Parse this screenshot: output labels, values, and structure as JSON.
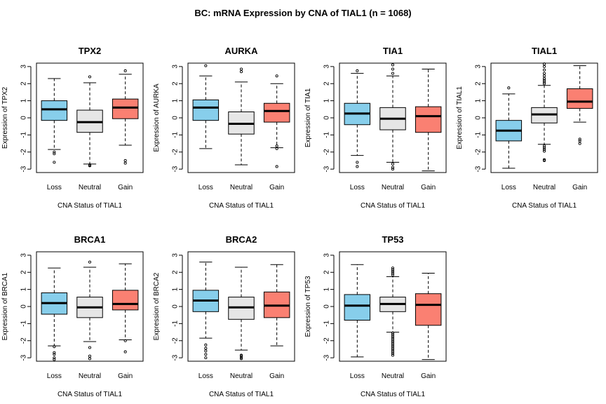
{
  "figure": {
    "title": "BC: mRNA Expression by CNA of TIAL1 (n = 1068)"
  },
  "colors": {
    "Loss": "#87CEEB",
    "Neutral": "#E6E6E6",
    "Gain": "#FA8072"
  },
  "chart_data": [
    {
      "type": "box",
      "title": "TPX2",
      "ylabel": "Expression of TPX2",
      "xlabel": "CNA Status of TIAL1",
      "categories": [
        "Loss",
        "Neutral",
        "Gain"
      ],
      "ylim": [
        -3.2,
        3.2
      ],
      "yticks": [
        -3,
        -2,
        -1,
        0,
        1,
        2,
        3
      ],
      "boxes": [
        {
          "whisker_low": -1.85,
          "q1": -0.15,
          "median": 0.5,
          "q3": 1.0,
          "whisker_high": 2.3,
          "outliers": [
            -2.0,
            -2.1,
            -2.6
          ]
        },
        {
          "whisker_low": -2.7,
          "q1": -0.85,
          "median": -0.25,
          "q3": 0.45,
          "whisker_high": 2.05,
          "outliers": [
            2.4,
            -2.75,
            -2.8,
            -2.8
          ]
        },
        {
          "whisker_low": -1.6,
          "q1": -0.05,
          "median": 0.6,
          "q3": 1.1,
          "whisker_high": 2.55,
          "outliers": [
            2.75,
            -2.5,
            -2.65
          ]
        }
      ]
    },
    {
      "type": "box",
      "title": "AURKA",
      "ylabel": "Expression of AURKA",
      "xlabel": "CNA Status of TIAL1",
      "categories": [
        "Loss",
        "Neutral",
        "Gain"
      ],
      "ylim": [
        -3.2,
        3.2
      ],
      "yticks": [
        -3,
        -2,
        -1,
        0,
        1,
        2,
        3
      ],
      "boxes": [
        {
          "whisker_low": -1.8,
          "q1": -0.15,
          "median": 0.6,
          "q3": 1.05,
          "whisker_high": 2.45,
          "outliers": [
            3.05
          ]
        },
        {
          "whisker_low": -2.75,
          "q1": -0.95,
          "median": -0.35,
          "q3": 0.35,
          "whisker_high": 2.1,
          "outliers": [
            2.7,
            2.85
          ]
        },
        {
          "whisker_low": -1.75,
          "q1": -0.25,
          "median": 0.4,
          "q3": 0.85,
          "whisker_high": 2.0,
          "outliers": [
            2.45,
            -1.65,
            -1.8,
            -2.85
          ]
        }
      ]
    },
    {
      "type": "box",
      "title": "TIA1",
      "ylabel": "Expression of TIA1",
      "xlabel": "CNA Status of TIAL1",
      "categories": [
        "Loss",
        "Neutral",
        "Gain"
      ],
      "ylim": [
        -3.2,
        3.2
      ],
      "yticks": [
        -3,
        -2,
        -1,
        0,
        1,
        2,
        3
      ],
      "boxes": [
        {
          "whisker_low": -2.2,
          "q1": -0.4,
          "median": 0.25,
          "q3": 0.85,
          "whisker_high": 2.6,
          "outliers": [
            2.75,
            -2.6,
            -2.85
          ]
        },
        {
          "whisker_low": -2.6,
          "q1": -0.7,
          "median": -0.05,
          "q3": 0.6,
          "whisker_high": 2.45,
          "outliers": [
            3.1,
            2.85,
            2.6,
            -2.7,
            -2.9,
            -3.0
          ]
        },
        {
          "whisker_low": -3.1,
          "q1": -0.85,
          "median": 0.1,
          "q3": 0.65,
          "whisker_high": 2.85,
          "outliers": []
        }
      ]
    },
    {
      "type": "box",
      "title": "TIAL1",
      "ylabel": "Expression of TIAL1",
      "xlabel": "CNA Status of TIAL1",
      "categories": [
        "Loss",
        "Neutral",
        "Gain"
      ],
      "ylim": [
        -3.2,
        3.2
      ],
      "yticks": [
        -3,
        -2,
        -1,
        0,
        1,
        2,
        3
      ],
      "boxes": [
        {
          "whisker_low": -2.95,
          "q1": -1.35,
          "median": -0.75,
          "q3": -0.15,
          "whisker_high": 1.4,
          "outliers": [
            1.75
          ]
        },
        {
          "whisker_low": -1.55,
          "q1": -0.3,
          "median": 0.2,
          "q3": 0.6,
          "whisker_high": 1.9,
          "outliers": [
            2.0,
            2.1,
            2.2,
            2.3,
            2.45,
            2.6,
            2.8,
            3.0,
            3.15,
            -1.65,
            -1.75,
            -1.85,
            -1.95,
            -2.45,
            -2.5
          ]
        },
        {
          "whisker_low": -0.25,
          "q1": 0.55,
          "median": 0.95,
          "q3": 1.7,
          "whisker_high": 3.05,
          "outliers": [
            -1.25,
            -1.35,
            -1.5
          ]
        }
      ]
    },
    {
      "type": "box",
      "title": "BRCA1",
      "ylabel": "Expression of BRCA1",
      "xlabel": "CNA Status of TIAL1",
      "categories": [
        "Loss",
        "Neutral",
        "Gain"
      ],
      "ylim": [
        -3.2,
        3.2
      ],
      "yticks": [
        -3,
        -2,
        -1,
        0,
        1,
        2,
        3
      ],
      "boxes": [
        {
          "whisker_low": -2.3,
          "q1": -0.45,
          "median": 0.2,
          "q3": 0.8,
          "whisker_high": 2.25,
          "outliers": [
            -2.35,
            -2.7,
            -2.8,
            -3.0,
            -3.1
          ]
        },
        {
          "whisker_low": -2.05,
          "q1": -0.65,
          "median": -0.05,
          "q3": 0.55,
          "whisker_high": 2.3,
          "outliers": [
            2.6,
            -2.4,
            -2.9,
            -3.05
          ]
        },
        {
          "whisker_low": -1.95,
          "q1": -0.2,
          "median": 0.15,
          "q3": 0.95,
          "whisker_high": 2.5,
          "outliers": [
            -2.0,
            -2.65
          ]
        }
      ]
    },
    {
      "type": "box",
      "title": "BRCA2",
      "ylabel": "Expression of BRCA2",
      "xlabel": "CNA Status of TIAL1",
      "categories": [
        "Loss",
        "Neutral",
        "Gain"
      ],
      "ylim": [
        -3.2,
        3.2
      ],
      "yticks": [
        -3,
        -2,
        -1,
        0,
        1,
        2,
        3
      ],
      "boxes": [
        {
          "whisker_low": -1.85,
          "q1": -0.3,
          "median": 0.35,
          "q3": 0.95,
          "whisker_high": 2.6,
          "outliers": [
            -2.25,
            -2.45,
            -2.6,
            -2.8,
            -3.0
          ]
        },
        {
          "whisker_low": -2.55,
          "q1": -0.75,
          "median": -0.05,
          "q3": 0.55,
          "whisker_high": 2.3,
          "outliers": [
            -2.85,
            -2.9,
            -3.0,
            -3.05
          ]
        },
        {
          "whisker_low": -2.3,
          "q1": -0.65,
          "median": 0.05,
          "q3": 0.85,
          "whisker_high": 2.45,
          "outliers": []
        }
      ]
    },
    {
      "type": "box",
      "title": "TP53",
      "ylabel": "Expression of TP53",
      "xlabel": "CNA Status of TIAL1",
      "categories": [
        "Loss",
        "Neutral",
        "Gain"
      ],
      "ylim": [
        -3.2,
        3.2
      ],
      "yticks": [
        -3,
        -2,
        -1,
        0,
        1,
        2,
        3
      ],
      "boxes": [
        {
          "whisker_low": -2.95,
          "q1": -0.8,
          "median": 0.05,
          "q3": 0.7,
          "whisker_high": 2.45,
          "outliers": []
        },
        {
          "whisker_low": -1.5,
          "q1": -0.3,
          "median": 0.15,
          "q3": 0.55,
          "whisker_high": 1.75,
          "outliers": [
            1.85,
            1.95,
            2.05,
            2.15,
            2.25,
            -1.55,
            -1.65,
            -1.75,
            -1.85,
            -1.95,
            -2.05,
            -2.15,
            -2.25,
            -2.35,
            -2.45,
            -2.55,
            -2.65,
            -2.75,
            -2.85
          ]
        },
        {
          "whisker_low": -3.1,
          "q1": -1.1,
          "median": 0.1,
          "q3": 0.75,
          "whisker_high": 1.95,
          "outliers": []
        }
      ]
    }
  ]
}
